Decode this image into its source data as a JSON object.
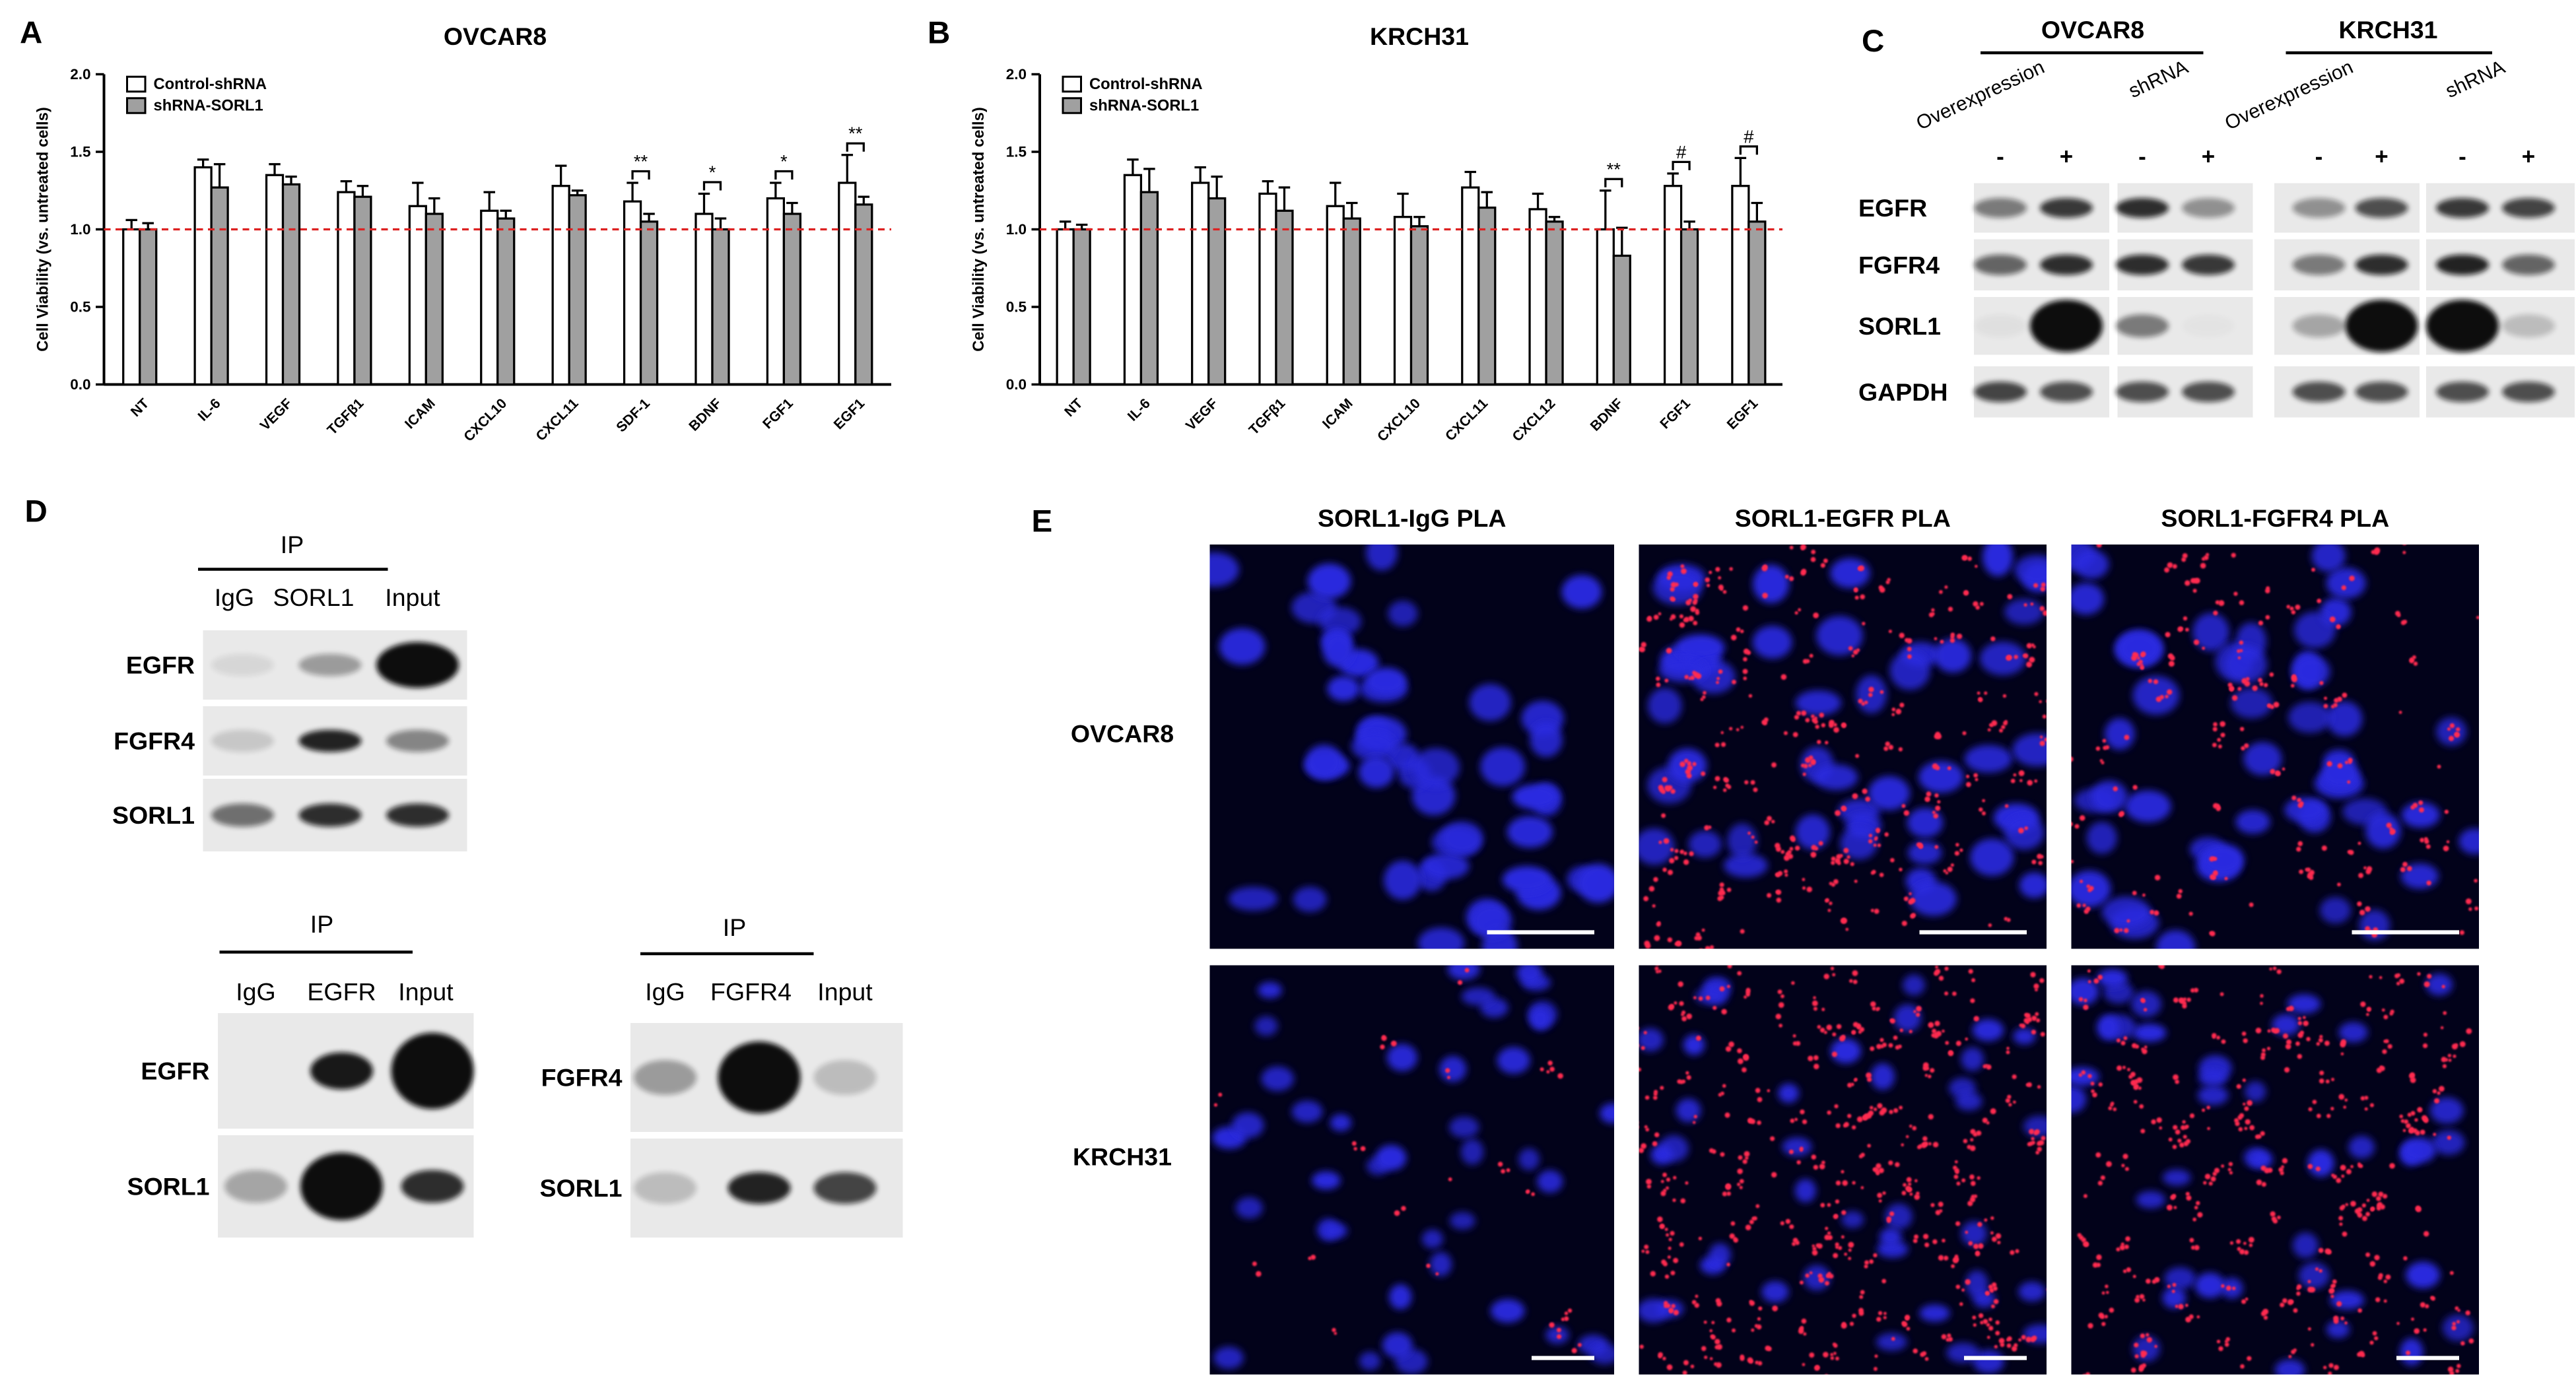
{
  "chart_data": [
    {
      "type": "bar",
      "panel_label": "A",
      "title": "OVCAR8",
      "y_label": "Cell Viability (vs. untreated cells)",
      "categories": [
        "NT",
        "IL-6",
        "VEGF",
        "TGFβ1",
        "ICAM",
        "CXCL10",
        "CXCL11",
        "SDF-1",
        "BDNF",
        "FGF1",
        "EGF1"
      ],
      "series": [
        {
          "name": "Control-shRNA",
          "color": "#ffffff",
          "values": [
            1.0,
            1.4,
            1.35,
            1.24,
            1.15,
            1.12,
            1.28,
            1.18,
            1.1,
            1.2,
            1.3
          ],
          "errors": [
            0.06,
            0.05,
            0.07,
            0.07,
            0.15,
            0.12,
            0.13,
            0.12,
            0.13,
            0.1,
            0.18
          ]
        },
        {
          "name": "shRNA-SORL1",
          "color": "#a0a0a0",
          "values": [
            1.0,
            1.27,
            1.29,
            1.21,
            1.1,
            1.07,
            1.22,
            1.05,
            1.0,
            1.1,
            1.16
          ],
          "errors": [
            0.04,
            0.15,
            0.05,
            0.07,
            0.1,
            0.05,
            0.03,
            0.05,
            0.07,
            0.07,
            0.05
          ]
        }
      ],
      "significance": [
        null,
        null,
        null,
        null,
        null,
        null,
        null,
        "**",
        "*",
        "*",
        "**"
      ],
      "reference_line": 1,
      "reference_color": "#dd2222",
      "ylim": [
        0,
        2
      ],
      "yticks": [
        {
          "value": 0,
          "label": "0.0"
        },
        0.5,
        {
          "value": 1,
          "label": "1.0"
        },
        1.5,
        {
          "value": 2,
          "label": "2.0"
        }
      ]
    },
    {
      "type": "bar",
      "panel_label": "B",
      "title": "KRCH31",
      "y_label": "Cell Viability (vs. untreated cells)",
      "categories": [
        "NT",
        "IL-6",
        "VEGF",
        "TGFβ1",
        "ICAM",
        "CXCL10",
        "CXCL11",
        "CXCL12",
        "BDNF",
        "FGF1",
        "EGF1"
      ],
      "series": [
        {
          "name": "Control-shRNA",
          "color": "#ffffff",
          "values": [
            1.0,
            1.35,
            1.3,
            1.23,
            1.15,
            1.08,
            1.27,
            1.13,
            1.0,
            1.28,
            1.28
          ],
          "errors": [
            0.05,
            0.1,
            0.1,
            0.08,
            0.15,
            0.15,
            0.1,
            0.1,
            0.25,
            0.08,
            0.18
          ]
        },
        {
          "name": "shRNA-SORL1",
          "color": "#a0a0a0",
          "values": [
            1.0,
            1.24,
            1.2,
            1.12,
            1.07,
            1.02,
            1.14,
            1.05,
            0.83,
            1.0,
            1.05
          ],
          "errors": [
            0.03,
            0.15,
            0.14,
            0.15,
            0.1,
            0.06,
            0.1,
            0.03,
            0.18,
            0.05,
            0.12
          ]
        }
      ],
      "significance": [
        null,
        null,
        null,
        null,
        null,
        null,
        null,
        null,
        "**",
        "#",
        "#"
      ],
      "reference_line": 1,
      "reference_color": "#dd2222",
      "ylim": [
        0,
        2
      ],
      "yticks": [
        {
          "value": 0,
          "label": "0.0"
        },
        0.5,
        {
          "value": 1,
          "label": "1.0"
        },
        1.5,
        {
          "value": 2,
          "label": "2.0"
        }
      ]
    }
  ],
  "panel_c": {
    "label": "C",
    "groups": [
      {
        "title": "OVCAR8",
        "conditions": [
          "Overexpression",
          "shRNA"
        ],
        "lanes": [
          "-",
          "+",
          "-",
          "+"
        ]
      },
      {
        "title": "KRCH31",
        "conditions": [
          "Overexpression",
          "shRNA"
        ],
        "lanes": [
          "-",
          "+",
          "-",
          "+"
        ]
      }
    ],
    "rows": [
      "EGFR",
      "FGFR4",
      "SORL1",
      "GAPDH"
    ]
  },
  "panel_d": {
    "label": "D",
    "blots": [
      {
        "header": "IP",
        "lanes": [
          "IgG",
          "SORL1",
          "Input"
        ],
        "rows": [
          "EGFR",
          "FGFR4",
          "SORL1"
        ]
      },
      {
        "header": "IP",
        "lanes": [
          "IgG",
          "EGFR",
          "Input"
        ],
        "rows": [
          "EGFR",
          "SORL1"
        ]
      },
      {
        "header": "IP",
        "lanes": [
          "IgG",
          "FGFR4",
          "Input"
        ],
        "rows": [
          "FGFR4",
          "SORL1"
        ]
      }
    ]
  },
  "panel_e": {
    "label": "E",
    "columns": [
      "SORL1-IgG PLA",
      "SORL1-EGFR PLA",
      "SORL1-FGFR4 PLA"
    ],
    "rows": [
      "OVCAR8",
      "KRCH31"
    ]
  }
}
